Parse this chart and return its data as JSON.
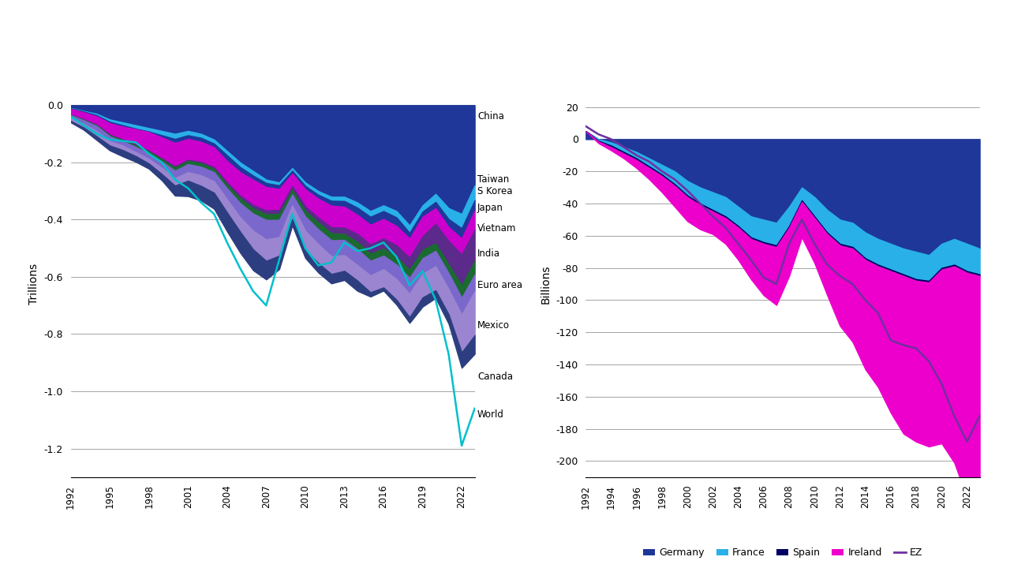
{
  "chart1": {
    "years": [
      1992,
      1993,
      1994,
      1995,
      1996,
      1997,
      1998,
      1999,
      2000,
      2001,
      2002,
      2003,
      2004,
      2005,
      2006,
      2007,
      2008,
      2009,
      2010,
      2011,
      2012,
      2013,
      2014,
      2015,
      2016,
      2017,
      2018,
      2019,
      2020,
      2021,
      2022,
      2023
    ],
    "china": [
      -0.01,
      -0.02,
      -0.03,
      -0.05,
      -0.06,
      -0.07,
      -0.08,
      -0.09,
      -0.1,
      -0.09,
      -0.1,
      -0.12,
      -0.16,
      -0.2,
      -0.23,
      -0.26,
      -0.27,
      -0.22,
      -0.27,
      -0.3,
      -0.32,
      -0.32,
      -0.34,
      -0.37,
      -0.35,
      -0.37,
      -0.42,
      -0.35,
      -0.31,
      -0.36,
      -0.38,
      -0.28
    ],
    "taiwan": [
      -0.001,
      -0.002,
      -0.005,
      -0.008,
      -0.01,
      -0.012,
      -0.012,
      -0.015,
      -0.018,
      -0.015,
      -0.014,
      -0.014,
      -0.015,
      -0.016,
      -0.016,
      -0.012,
      -0.01,
      -0.009,
      -0.012,
      -0.013,
      -0.014,
      -0.015,
      -0.018,
      -0.02,
      -0.02,
      -0.022,
      -0.026,
      -0.022,
      -0.028,
      -0.038,
      -0.05,
      -0.052
    ],
    "skorea": [
      -0.002,
      -0.003,
      -0.004,
      -0.005,
      -0.005,
      -0.002,
      -0.002,
      -0.008,
      -0.014,
      -0.013,
      -0.014,
      -0.013,
      -0.02,
      -0.018,
      -0.015,
      -0.014,
      -0.013,
      -0.01,
      -0.012,
      -0.014,
      -0.017,
      -0.02,
      -0.025,
      -0.028,
      -0.028,
      -0.03,
      -0.02,
      -0.018,
      -0.022,
      -0.028,
      -0.036,
      -0.036
    ],
    "japan": [
      -0.02,
      -0.025,
      -0.03,
      -0.04,
      -0.045,
      -0.055,
      -0.065,
      -0.073,
      -0.082,
      -0.073,
      -0.07,
      -0.07,
      -0.075,
      -0.082,
      -0.088,
      -0.082,
      -0.073,
      -0.044,
      -0.06,
      -0.066,
      -0.076,
      -0.073,
      -0.067,
      -0.069,
      -0.068,
      -0.068,
      -0.067,
      -0.068,
      -0.055,
      -0.049,
      -0.056,
      -0.068
    ],
    "vietnam": [
      -0.001,
      -0.001,
      -0.001,
      -0.002,
      -0.002,
      -0.002,
      -0.003,
      -0.003,
      -0.004,
      -0.004,
      -0.005,
      -0.006,
      -0.008,
      -0.01,
      -0.012,
      -0.013,
      -0.014,
      -0.013,
      -0.015,
      -0.017,
      -0.02,
      -0.022,
      -0.028,
      -0.032,
      -0.035,
      -0.04,
      -0.042,
      -0.048,
      -0.068,
      -0.082,
      -0.108,
      -0.108
    ],
    "india": [
      -0.001,
      -0.002,
      -0.003,
      -0.004,
      -0.004,
      -0.005,
      -0.007,
      -0.008,
      -0.011,
      -0.011,
      -0.012,
      -0.011,
      -0.013,
      -0.016,
      -0.018,
      -0.02,
      -0.021,
      -0.016,
      -0.02,
      -0.024,
      -0.025,
      -0.021,
      -0.025,
      -0.025,
      -0.025,
      -0.027,
      -0.028,
      -0.029,
      -0.026,
      -0.03,
      -0.043,
      -0.047
    ],
    "euroarea": [
      -0.01,
      -0.012,
      -0.018,
      -0.017,
      -0.015,
      -0.018,
      -0.019,
      -0.022,
      -0.026,
      -0.028,
      -0.03,
      -0.032,
      -0.038,
      -0.05,
      -0.06,
      -0.068,
      -0.06,
      -0.038,
      -0.05,
      -0.052,
      -0.056,
      -0.053,
      -0.056,
      -0.051,
      -0.047,
      -0.051,
      -0.056,
      -0.054,
      -0.054,
      -0.056,
      -0.059,
      -0.059
    ],
    "mexico": [
      -0.01,
      -0.013,
      -0.018,
      -0.015,
      -0.016,
      -0.014,
      -0.016,
      -0.022,
      -0.026,
      -0.03,
      -0.037,
      -0.04,
      -0.046,
      -0.05,
      -0.065,
      -0.075,
      -0.065,
      -0.048,
      -0.067,
      -0.066,
      -0.062,
      -0.055,
      -0.054,
      -0.059,
      -0.064,
      -0.072,
      -0.082,
      -0.083,
      -0.084,
      -0.088,
      -0.132,
      -0.154
    ],
    "canada": [
      -0.005,
      -0.008,
      -0.013,
      -0.017,
      -0.022,
      -0.02,
      -0.018,
      -0.022,
      -0.035,
      -0.054,
      -0.051,
      -0.056,
      -0.066,
      -0.073,
      -0.073,
      -0.065,
      -0.047,
      -0.022,
      -0.028,
      -0.033,
      -0.033,
      -0.032,
      -0.036,
      -0.015,
      -0.011,
      -0.017,
      -0.02,
      -0.032,
      -0.027,
      -0.033,
      -0.054,
      -0.065
    ],
    "world": [
      -0.04,
      -0.07,
      -0.1,
      -0.12,
      -0.125,
      -0.13,
      -0.17,
      -0.2,
      -0.26,
      -0.29,
      -0.34,
      -0.38,
      -0.48,
      -0.57,
      -0.65,
      -0.7,
      -0.54,
      -0.38,
      -0.5,
      -0.56,
      -0.55,
      -0.48,
      -0.51,
      -0.5,
      -0.48,
      -0.53,
      -0.63,
      -0.58,
      -0.68,
      -0.87,
      -1.19,
      -1.06
    ],
    "ylabel": "Trillions",
    "ylim": [
      -1.3,
      0.05
    ],
    "yticks": [
      0.0,
      -0.2,
      -0.4,
      -0.6,
      -0.8,
      -1.0,
      -1.2
    ]
  },
  "chart2": {
    "years": [
      1992,
      1993,
      1994,
      1995,
      1996,
      1997,
      1998,
      1999,
      2000,
      2001,
      2002,
      2003,
      2004,
      2005,
      2006,
      2007,
      2008,
      2009,
      2010,
      2011,
      2012,
      2013,
      2014,
      2015,
      2016,
      2017,
      2018,
      2019,
      2020,
      2021,
      2022,
      2023
    ],
    "germany": [
      5,
      0,
      -2,
      -5,
      -8,
      -12,
      -16,
      -20,
      -26,
      -30,
      -33,
      -36,
      -42,
      -48,
      -50,
      -52,
      -42,
      -30,
      -36,
      -44,
      -50,
      -52,
      -58,
      -62,
      -65,
      -68,
      -70,
      -72,
      -65,
      -62,
      -65,
      -68
    ],
    "france": [
      0,
      -1,
      -2,
      -3,
      -4,
      -5,
      -6,
      -8,
      -9,
      -10,
      -11,
      -12,
      -12,
      -13,
      -14,
      -14,
      -12,
      -8,
      -12,
      -14,
      -15,
      -15,
      -16,
      -16,
      -16,
      -16,
      -17,
      -16,
      -15,
      -16,
      -17,
      -16
    ],
    "spain": [
      0,
      -0.5,
      -1,
      -1,
      -1,
      -1,
      -1,
      -1,
      -1,
      -1,
      -1,
      -1,
      -1,
      -1,
      -1,
      -1,
      -1,
      -1,
      -1,
      -1,
      -1,
      -1,
      -1,
      -1,
      -1,
      -1,
      -1,
      -1,
      -1,
      -1,
      -1,
      -1
    ],
    "ireland": [
      0,
      -1,
      -2,
      -3,
      -5,
      -7,
      -10,
      -13,
      -15,
      -15,
      -14,
      -16,
      -20,
      -25,
      -32,
      -36,
      -30,
      -22,
      -28,
      -38,
      -50,
      -58,
      -68,
      -75,
      -88,
      -98,
      -100,
      -102,
      -108,
      -122,
      -140,
      -148
    ],
    "ez_line": [
      8,
      3,
      0,
      -5,
      -10,
      -14,
      -20,
      -25,
      -32,
      -40,
      -48,
      -55,
      -65,
      -75,
      -86,
      -90,
      -65,
      -50,
      -65,
      -78,
      -85,
      -90,
      -100,
      -108,
      -125,
      -128,
      -130,
      -138,
      -152,
      -172,
      -188,
      -172
    ],
    "ylabel": "Billions",
    "ylim": [
      -210,
      30
    ],
    "yticks": [
      20,
      0,
      -20,
      -40,
      -60,
      -80,
      -100,
      -120,
      -140,
      -160,
      -180,
      -200
    ]
  },
  "background_color": "#ffffff",
  "left_annotations": {
    "China": -0.04,
    "Taiwan": -0.26,
    "S Korea": -0.3,
    "Japan": -0.36,
    "Vietnam": -0.43,
    "India": -0.52,
    "Euro area": -0.63,
    "Mexico": -0.77,
    "Canada": -0.95,
    "World": -1.08
  }
}
